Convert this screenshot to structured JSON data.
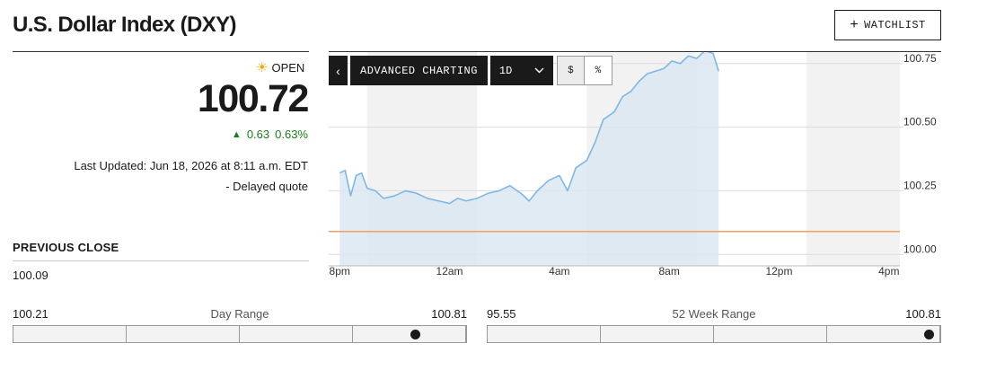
{
  "header": {
    "title": "U.S. Dollar Index (DXY)",
    "watchlist_label": "WATCHLIST",
    "watchlist_icon": "plus-icon"
  },
  "quote": {
    "status": "OPEN",
    "status_icon": "sun-icon",
    "price": "100.72",
    "change": "0.63",
    "change_percent": "0.63%",
    "change_color": "#1a7f1a",
    "last_updated": "Last Updated: Jun 18, 2026 at 8:11 a.m. EDT",
    "delayed": "-  Delayed quote"
  },
  "previous_close": {
    "label": "PREVIOUS CLOSE",
    "value": "100.09"
  },
  "chart_toolbar": {
    "back_icon": "chevron-left-icon",
    "advanced_label": "ADVANCED CHARTING",
    "range_label": "1D",
    "dollar_label": "$",
    "percent_label": "%"
  },
  "chart_data": {
    "type": "area",
    "x_tick_labels": [
      "8pm",
      "12am",
      "4am",
      "8am",
      "12pm",
      "4pm"
    ],
    "y_tick_labels": [
      "100.75",
      "100.50",
      "100.25",
      "100.00"
    ],
    "ylim": [
      99.955,
      100.795
    ],
    "xlim": [
      19.6,
      40.4
    ],
    "grid": true,
    "previous_close": 100.09,
    "line_color": "#7fb6e8",
    "fill_color": "#dbe7f2",
    "reference_line_color": "#f0a060",
    "shaded_band_color": "#f2f2f2",
    "x": [
      20.0,
      20.2,
      20.4,
      20.6,
      20.8,
      21.0,
      21.3,
      21.6,
      22.0,
      22.4,
      22.8,
      23.2,
      23.6,
      24.0,
      24.3,
      24.6,
      25.0,
      25.4,
      25.8,
      26.2,
      26.6,
      26.9,
      27.2,
      27.6,
      28.0,
      28.3,
      28.6,
      29.0,
      29.3,
      29.6,
      30.0,
      30.3,
      30.6,
      30.9,
      31.2,
      31.5,
      31.8,
      32.1,
      32.4,
      32.7,
      33.0,
      33.3,
      33.6,
      33.8
    ],
    "y": [
      100.32,
      100.33,
      100.23,
      100.31,
      100.32,
      100.26,
      100.25,
      100.22,
      100.23,
      100.25,
      100.24,
      100.22,
      100.21,
      100.2,
      100.22,
      100.21,
      100.22,
      100.24,
      100.25,
      100.27,
      100.24,
      100.21,
      100.25,
      100.29,
      100.31,
      100.25,
      100.34,
      100.37,
      100.44,
      100.53,
      100.56,
      100.62,
      100.64,
      100.68,
      100.71,
      100.72,
      100.73,
      100.76,
      100.75,
      100.78,
      100.77,
      100.8,
      100.79,
      100.72
    ]
  },
  "day_range": {
    "label": "Day Range",
    "low": "100.21",
    "high": "100.81",
    "position": 0.885
  },
  "week52_range": {
    "label": "52 Week Range",
    "low": "95.55",
    "high": "100.81",
    "position": 0.972
  }
}
